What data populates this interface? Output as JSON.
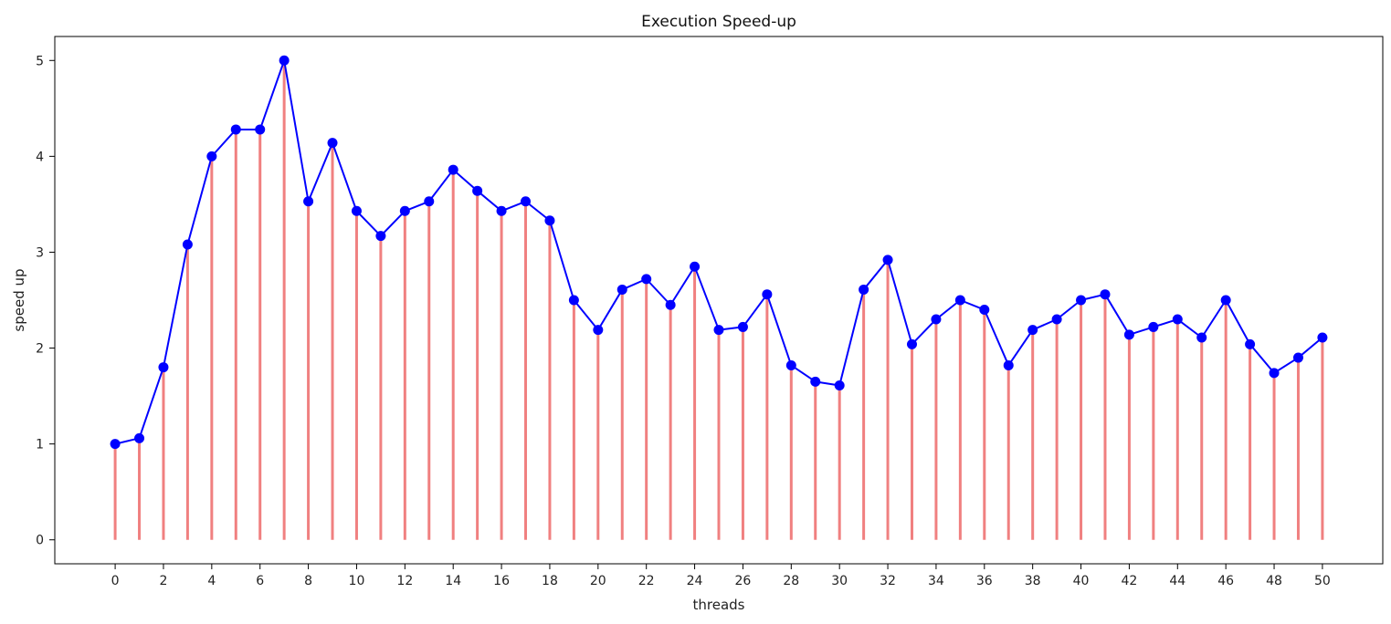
{
  "chart_data": {
    "type": "line",
    "title": "Execution Speed-up",
    "xlabel": "threads",
    "ylabel": "speed up",
    "x": [
      0,
      1,
      2,
      3,
      4,
      5,
      6,
      7,
      8,
      9,
      10,
      11,
      12,
      13,
      14,
      15,
      16,
      17,
      18,
      19,
      20,
      21,
      22,
      23,
      24,
      25,
      26,
      27,
      28,
      29,
      30,
      31,
      32,
      33,
      34,
      35,
      36,
      37,
      38,
      39,
      40,
      41,
      42,
      43,
      44,
      45,
      46,
      47,
      48,
      49,
      50
    ],
    "series": [
      {
        "values": [
          1.0,
          1.06,
          1.8,
          3.08,
          4.0,
          4.28,
          4.28,
          5.0,
          3.53,
          4.14,
          3.43,
          3.17,
          3.43,
          3.53,
          3.86,
          3.64,
          3.43,
          3.53,
          3.33,
          2.5,
          2.19,
          2.61,
          2.72,
          2.45,
          2.85,
          2.19,
          2.22,
          2.56,
          1.82,
          1.65,
          1.61,
          2.61,
          2.92,
          2.04,
          2.3,
          2.5,
          2.4,
          1.82,
          2.19,
          2.3,
          2.5,
          2.56,
          2.14,
          2.22,
          2.3,
          2.11,
          2.5,
          2.04,
          1.74,
          1.9,
          2.11
        ],
        "line_color": "#0000ff",
        "marker_color": "#0000ff",
        "stem_color": "#f08080"
      }
    ],
    "xlim": [
      -2.5,
      52.5
    ],
    "ylim": [
      -0.25,
      5.25
    ],
    "xticks": [
      0,
      2,
      4,
      6,
      8,
      10,
      12,
      14,
      16,
      18,
      20,
      22,
      24,
      26,
      28,
      30,
      32,
      34,
      36,
      38,
      40,
      42,
      44,
      46,
      48,
      50
    ],
    "yticks": [
      0,
      1,
      2,
      3,
      4,
      5
    ],
    "grid": false
  }
}
